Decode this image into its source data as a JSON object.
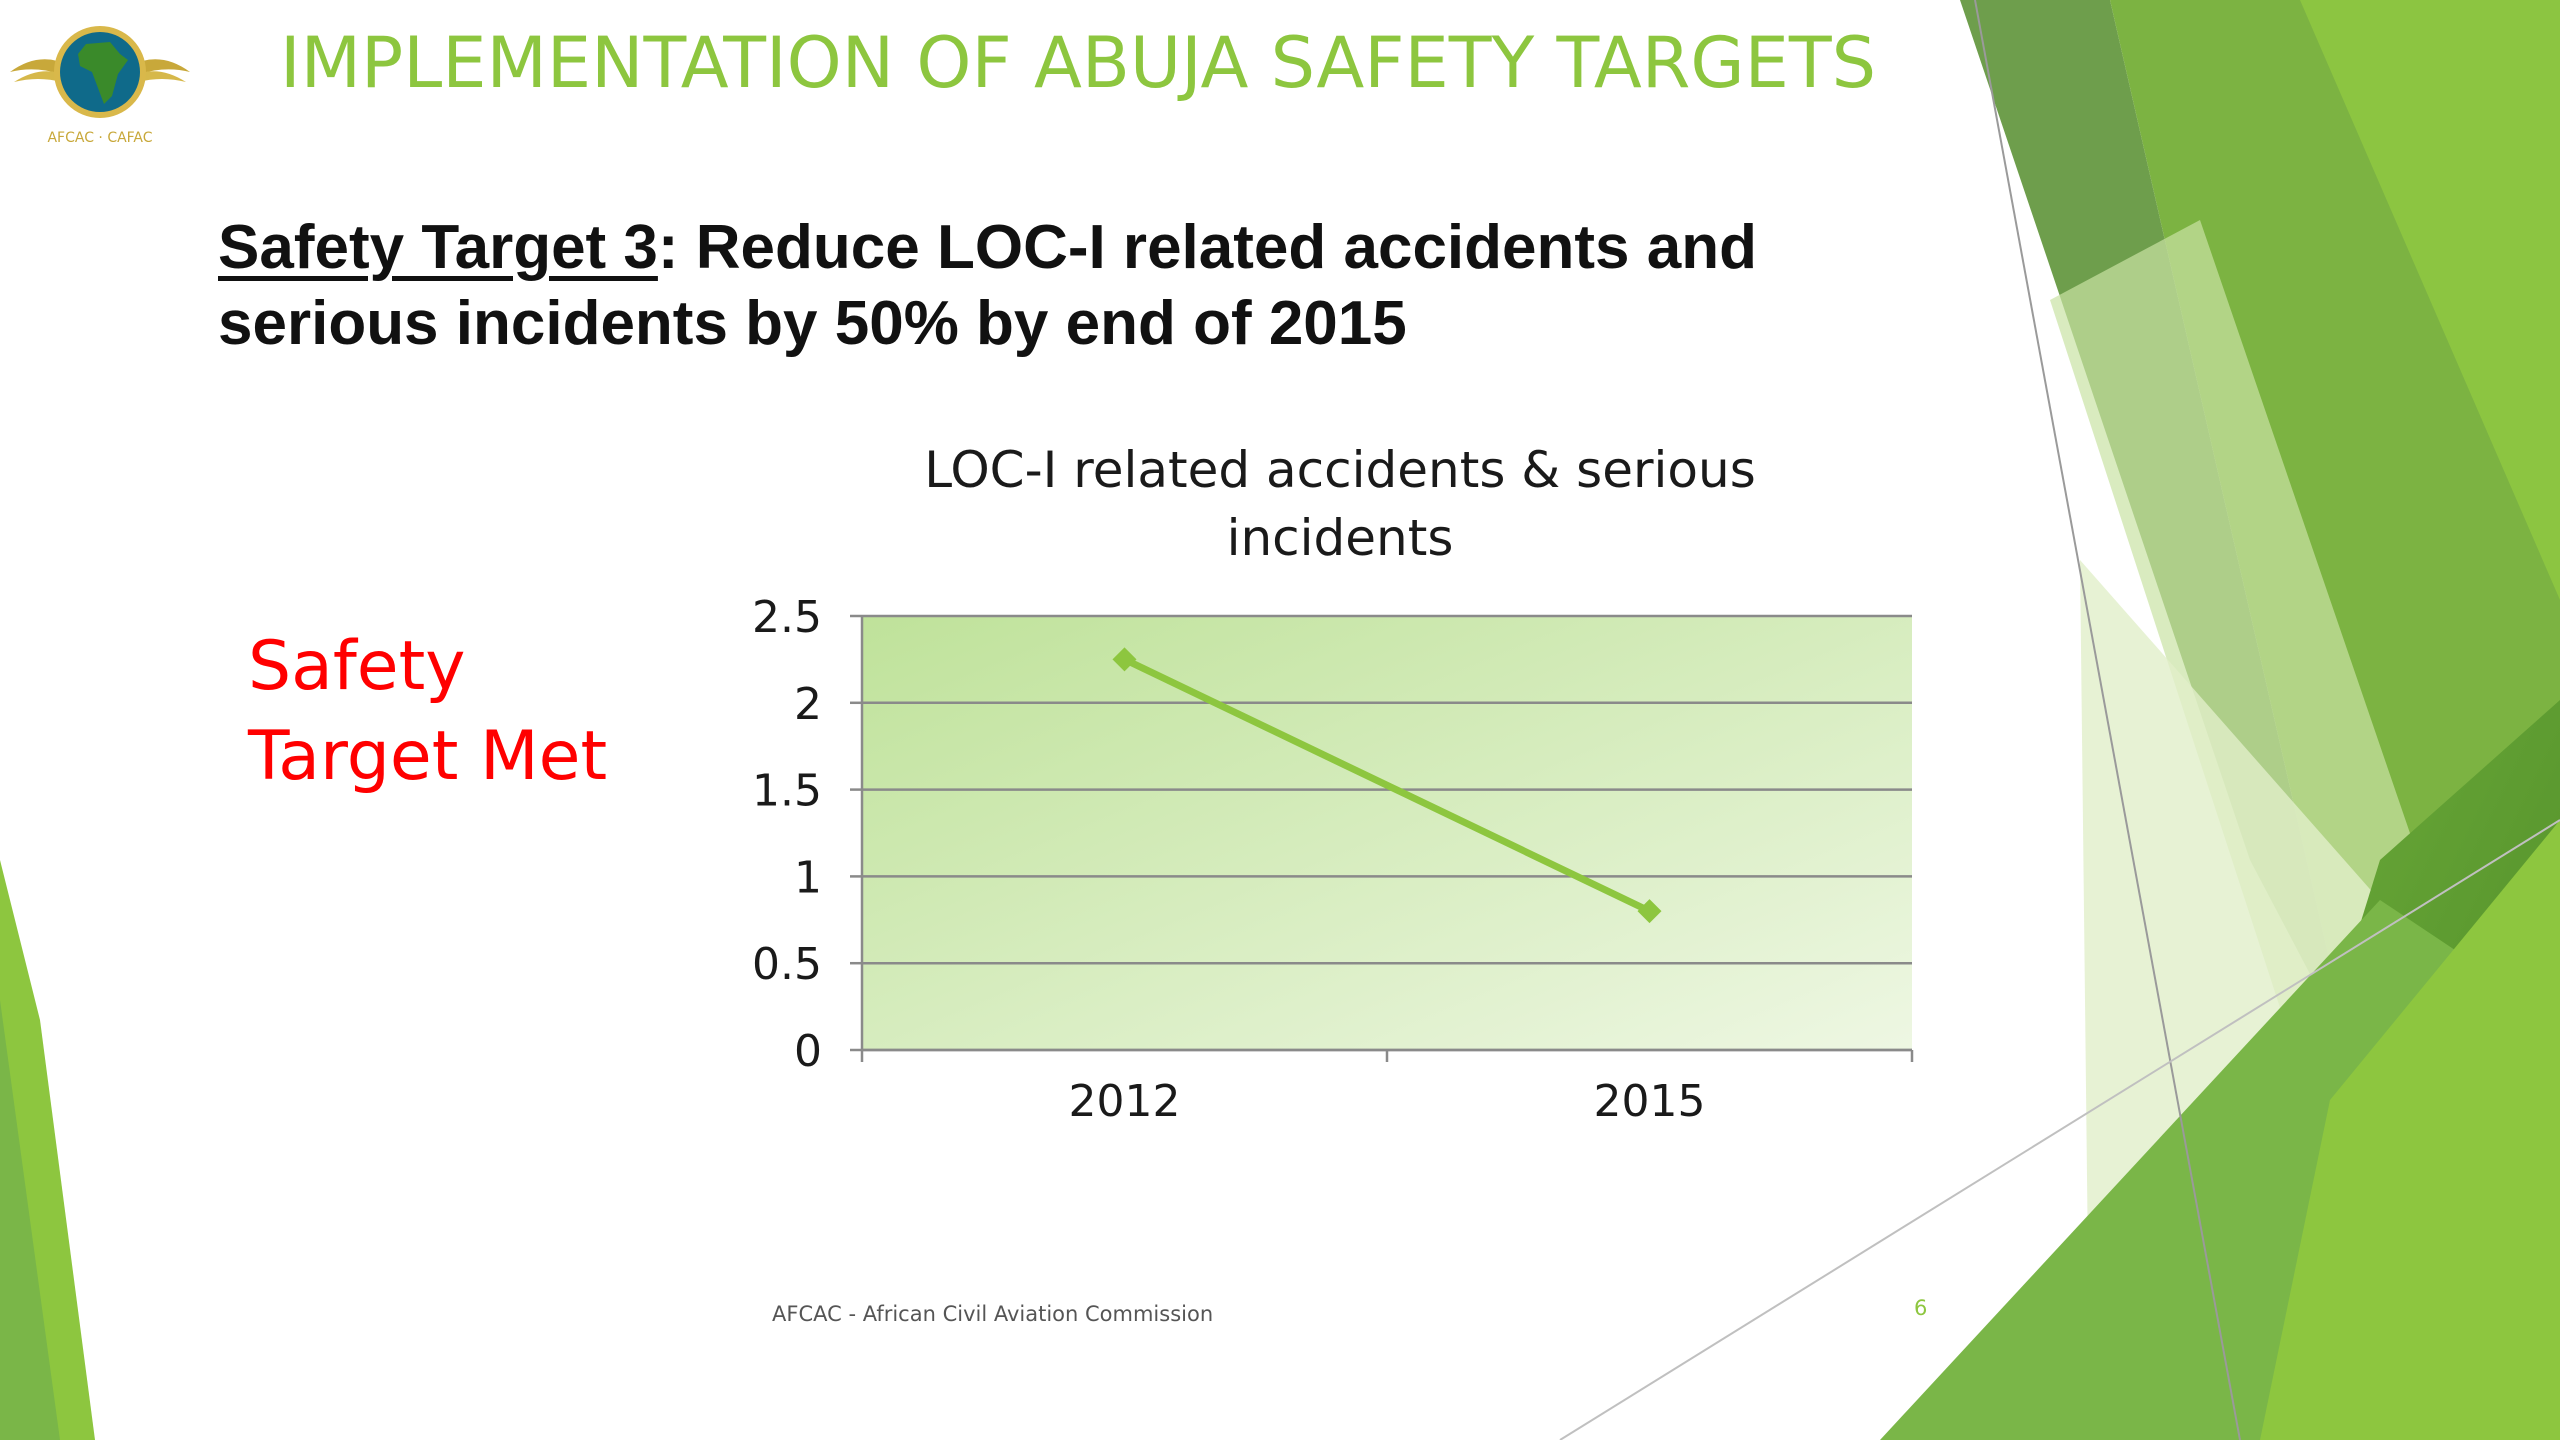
{
  "slide": {
    "title": "IMPLEMENTATION OF ABUJA SAFETY TARGETS",
    "subtitle_label": "Safety Target 3",
    "subtitle_text": ": Reduce LOC-I related accidents and serious incidents by 50% by end of 2015",
    "status_line1": "Safety",
    "status_line2": "Target Met",
    "footer": "AFCAC - African Civil Aviation Commission",
    "page_number": "6",
    "logo_text": "AFCAC · CAFAC"
  },
  "colors": {
    "accent": "#8dc63f",
    "status": "#ff0000",
    "series_line": "#8dc63f"
  },
  "chart_data": {
    "type": "line",
    "title": "LOC-I related accidents & serious incidents",
    "categories": [
      "2012",
      "2015"
    ],
    "series": [
      {
        "values": [
          2.25,
          0.8
        ]
      }
    ],
    "ylim": [
      0,
      2.5
    ],
    "yticks": [
      "0",
      "0.5",
      "1",
      "1.5",
      "2",
      "2.5"
    ],
    "grid": true,
    "legend": "none",
    "plot_background": "green gradient"
  }
}
